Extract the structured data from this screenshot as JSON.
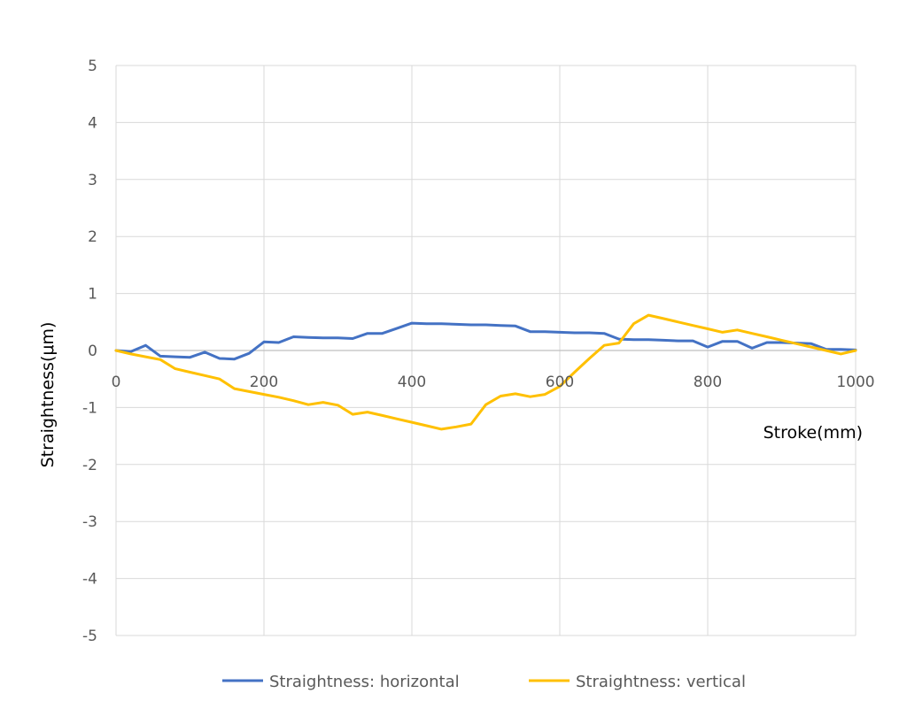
{
  "chart_data": {
    "type": "line",
    "xlabel": "Stroke(mm)",
    "ylabel": "Straightness(μm)",
    "xlim": [
      0,
      1000
    ],
    "ylim": [
      -5,
      5
    ],
    "xticks": [
      0,
      200,
      400,
      600,
      800,
      1000
    ],
    "yticks": [
      5,
      4,
      3,
      2,
      1,
      0,
      -1,
      -2,
      -3,
      -4,
      -5
    ],
    "grid": true,
    "legend_position": "bottom",
    "series": [
      {
        "name": "Straightness: horizontal",
        "color": "#4472C4",
        "x": [
          0,
          20,
          40,
          60,
          80,
          100,
          120,
          140,
          160,
          180,
          200,
          220,
          240,
          260,
          280,
          300,
          320,
          340,
          360,
          380,
          400,
          420,
          440,
          460,
          480,
          500,
          520,
          540,
          560,
          580,
          600,
          620,
          640,
          660,
          680,
          700,
          720,
          740,
          760,
          780,
          800,
          820,
          840,
          860,
          880,
          900,
          920,
          940,
          960,
          980,
          1000
        ],
        "y": [
          0,
          -0.02,
          0.09,
          -0.1,
          -0.11,
          -0.12,
          -0.03,
          -0.14,
          -0.15,
          -0.05,
          0.15,
          0.14,
          0.24,
          0.23,
          0.22,
          0.22,
          0.21,
          0.3,
          0.3,
          0.39,
          0.48,
          0.47,
          0.47,
          0.46,
          0.45,
          0.45,
          0.44,
          0.43,
          0.33,
          0.33,
          0.32,
          0.31,
          0.31,
          0.3,
          0.2,
          0.19,
          0.19,
          0.18,
          0.17,
          0.17,
          0.06,
          0.16,
          0.16,
          0.04,
          0.14,
          0.14,
          0.13,
          0.12,
          0.02,
          0.02,
          0.01
        ]
      },
      {
        "name": "Straightness: vertical",
        "color": "#FFC000",
        "x": [
          0,
          20,
          40,
          60,
          80,
          100,
          120,
          140,
          160,
          180,
          200,
          220,
          240,
          260,
          280,
          300,
          320,
          340,
          360,
          380,
          400,
          420,
          440,
          460,
          480,
          500,
          520,
          540,
          560,
          580,
          600,
          620,
          640,
          660,
          680,
          700,
          720,
          740,
          760,
          780,
          800,
          820,
          840,
          860,
          880,
          900,
          920,
          940,
          960,
          980,
          1000
        ],
        "y": [
          0,
          -0.06,
          -0.11,
          -0.16,
          -0.32,
          -0.38,
          -0.44,
          -0.5,
          -0.67,
          -0.72,
          -0.77,
          -0.82,
          -0.88,
          -0.95,
          -0.91,
          -0.96,
          -1.12,
          -1.08,
          -1.14,
          -1.2,
          -1.26,
          -1.32,
          -1.38,
          -1.34,
          -1.29,
          -0.95,
          -0.8,
          -0.76,
          -0.81,
          -0.77,
          -0.63,
          -0.38,
          -0.14,
          0.09,
          0.13,
          0.47,
          0.62,
          0.56,
          0.5,
          0.44,
          0.38,
          0.32,
          0.36,
          0.3,
          0.24,
          0.18,
          0.12,
          0.06,
          0.0,
          -0.06,
          0.0
        ]
      }
    ]
  }
}
